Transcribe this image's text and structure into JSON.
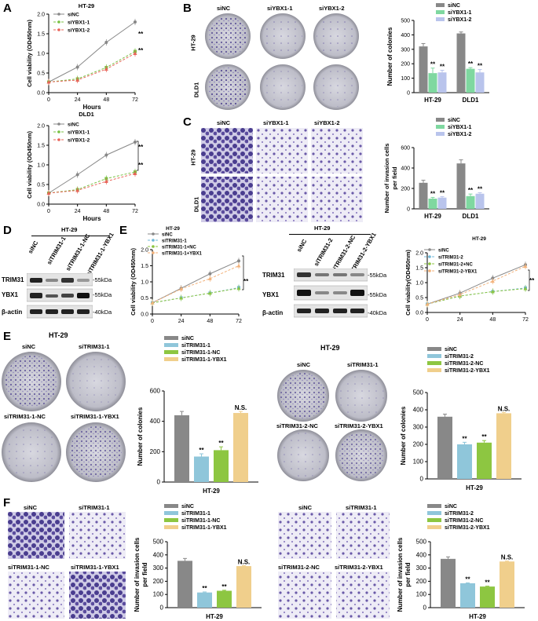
{
  "panel_labels": [
    "A",
    "B",
    "C",
    "D",
    "E",
    "E",
    "F"
  ],
  "colors": {
    "siNC": "#888888",
    "siYBX1_1": "#7fd8a0",
    "siYBX1_2": "#b9c4ec",
    "siTRIM_1": "#8fc6da",
    "siTRIM_NC": "#8dc641",
    "siTRIM_YBX1": "#f0cf8c",
    "line_siNC": "#888888",
    "line_siY1": "#7ac143",
    "line_siY2": "#e8645a",
    "line_siT": "#6fb8d8",
    "line_siTNC": "#8dc641",
    "line_siTY": "#f3b27a",
    "purple": "#6a5aa8"
  },
  "images": {
    "B_cols": [
      "siNC",
      "siYBX1-1",
      "siYBX1-2"
    ],
    "B_rows": [
      "HT-29",
      "DLD1"
    ],
    "C_cols": [
      "siNC",
      "siYBX1-1",
      "siYBX1-2"
    ],
    "C_rows": [
      "HT-29",
      "DLD1"
    ],
    "D_header": "HT-29",
    "D_lanes": [
      "siNC",
      "siTRIM31-1",
      "siTRIM31-1-NC",
      "siTRIM31-1-YBX1"
    ],
    "D_proteins": [
      "TRIM31",
      "YBX1",
      "β-actin"
    ],
    "D_sizes": [
      "-55kDa",
      "-55kDa",
      "-40kDa"
    ],
    "D2_header": "HT-29",
    "D2_lanes": [
      "siNC",
      "siTRIM31-2",
      "siTRIM31-2-NC",
      "siTRIM31-2-YBX1"
    ],
    "D2_proteins": [
      "TRIM31",
      "YBX1",
      "β-actin"
    ],
    "D2_sizes": [
      "-55kDa",
      "-55kDa",
      "-40kDa"
    ],
    "E1_title": "HT-29",
    "E1_plates": [
      "siNC",
      "siTRIM31-1",
      "siTRIM31-1-NC",
      "siTRIM31-1-YBX1"
    ],
    "E2_title": "HT-29",
    "E2_plates": [
      "siNC",
      "siTRIM31-1",
      "siTRIM31-2-NC",
      "siTRIM31-2-YBX1"
    ],
    "F1_fields": [
      "siNC",
      "siTRIM31-1",
      "siTRIM31-1-NC",
      "siTRIM31-1-YBX1"
    ],
    "F2_fields": [
      "siNC",
      "siTRIM31-1",
      "siTRIM31-2-NC",
      "siTRIM31-2-YBX1"
    ]
  },
  "chart_data": [
    {
      "id": "A1",
      "type": "line",
      "title": "HT-29",
      "x": [
        0,
        24,
        48,
        72
      ],
      "xlabel": "Hours",
      "ylabel": "Cell viability (OD450nm)",
      "ylim": [
        0,
        2.0
      ],
      "yticks": [
        0,
        0.5,
        1.0,
        1.5,
        2.0
      ],
      "xticks": [
        0,
        24,
        48,
        72
      ],
      "series": [
        {
          "name": "siNC",
          "values": [
            0.27,
            0.65,
            1.28,
            1.8
          ]
        },
        {
          "name": "siYBX1-1",
          "values": [
            0.27,
            0.35,
            0.64,
            1.05
          ]
        },
        {
          "name": "siYBX1-2",
          "values": [
            0.27,
            0.32,
            0.6,
            1.0
          ]
        }
      ],
      "annotations": [
        "**",
        "**"
      ]
    },
    {
      "id": "A2",
      "type": "line",
      "title": "DLD1",
      "x": [
        0,
        24,
        48,
        72
      ],
      "xlabel": "Hours",
      "ylabel": "Cell viability (OD450nm)",
      "ylim": [
        0,
        2.0
      ],
      "yticks": [
        0,
        0.5,
        1.0,
        1.5,
        2.0
      ],
      "xticks": [
        0,
        24,
        48,
        72
      ],
      "series": [
        {
          "name": "siNC",
          "values": [
            0.28,
            0.75,
            1.25,
            1.58
          ]
        },
        {
          "name": "siYBX1-1",
          "values": [
            0.28,
            0.37,
            0.65,
            0.82
          ]
        },
        {
          "name": "siYBX1-2",
          "values": [
            0.28,
            0.35,
            0.58,
            0.78
          ]
        }
      ],
      "annotations": [
        "**",
        "**"
      ]
    },
    {
      "id": "B",
      "type": "bar",
      "categories": [
        "HT-29",
        "DLD1"
      ],
      "ylabel": "Number of colonies",
      "ylim": [
        0,
        500
      ],
      "yticks": [
        0,
        100,
        200,
        300,
        400,
        500
      ],
      "series": [
        {
          "name": "siNC",
          "values": [
            320,
            410
          ],
          "err": [
            20,
            10
          ]
        },
        {
          "name": "siYBX1-1",
          "values": [
            135,
            165
          ],
          "err": [
            35,
            8
          ]
        },
        {
          "name": "siYBX1-2",
          "values": [
            140,
            140
          ],
          "err": [
            15,
            20
          ]
        }
      ],
      "annotations": [
        "**",
        "**",
        "**",
        "**"
      ]
    },
    {
      "id": "C",
      "type": "bar",
      "categories": [
        "HT-29",
        "DLD1"
      ],
      "ylabel": "Number of invasion cells per field",
      "ylim": [
        0,
        600
      ],
      "yticks": [
        0,
        200,
        400,
        600
      ],
      "series": [
        {
          "name": "siNC",
          "values": [
            255,
            445
          ],
          "err": [
            25,
            35
          ]
        },
        {
          "name": "siYBX1-1",
          "values": [
            100,
            125
          ],
          "err": [
            12,
            20
          ]
        },
        {
          "name": "siYBX1-2",
          "values": [
            110,
            148
          ],
          "err": [
            10,
            10
          ]
        }
      ],
      "annotations": [
        "**",
        "**",
        "**",
        "**"
      ]
    },
    {
      "id": "E_line1",
      "type": "line",
      "title": "HT-29",
      "x": [
        0,
        24,
        48,
        72
      ],
      "xlabel": "",
      "ylabel": "Cell viability (OD450nm)",
      "ylim": [
        0,
        2.0
      ],
      "yticks": [
        0,
        0.5,
        1.0,
        1.5,
        2.0
      ],
      "xticks": [
        0,
        24,
        48,
        72
      ],
      "series": [
        {
          "name": "siNC",
          "values": [
            0.35,
            0.8,
            1.25,
            1.65
          ]
        },
        {
          "name": "siTRIM31-1",
          "values": [
            0.35,
            0.5,
            0.65,
            0.82
          ]
        },
        {
          "name": "siTRIM31-1+NC",
          "values": [
            0.35,
            0.5,
            0.65,
            0.8
          ]
        },
        {
          "name": "siTRIM31-1+YBX1",
          "values": [
            0.35,
            0.78,
            1.1,
            1.5
          ]
        }
      ],
      "annotations": [
        "**"
      ]
    },
    {
      "id": "E_line2",
      "type": "line",
      "title": "HT-29",
      "x": [
        0,
        24,
        48,
        72
      ],
      "xlabel": "",
      "ylabel": "Cell viability(OD450nm)",
      "ylim": [
        0,
        2.0
      ],
      "yticks": [
        0,
        0.5,
        1.0,
        1.5,
        2.0
      ],
      "xticks": [
        0,
        24,
        48,
        72
      ],
      "series": [
        {
          "name": "siNC",
          "values": [
            0.28,
            0.65,
            1.15,
            1.6
          ]
        },
        {
          "name": "siTRIM31-2",
          "values": [
            0.28,
            0.55,
            0.7,
            0.82
          ]
        },
        {
          "name": "siTRIM31-2+NC",
          "values": [
            0.28,
            0.55,
            0.7,
            0.8
          ]
        },
        {
          "name": "siTRIM31-2-YBX1",
          "values": [
            0.28,
            0.6,
            1.05,
            1.55
          ]
        }
      ],
      "annotations": [
        "**"
      ]
    },
    {
      "id": "E_bar1",
      "type": "bar",
      "categories": [
        "HT-29"
      ],
      "ylabel": "Number of colonies",
      "ylim": [
        0,
        600
      ],
      "yticks": [
        0,
        200,
        400,
        600
      ],
      "series": [
        {
          "name": "siNC",
          "values": [
            440
          ],
          "err": [
            25
          ]
        },
        {
          "name": "siTRIM31-1",
          "values": [
            168
          ],
          "err": [
            18
          ]
        },
        {
          "name": "siTRIM31-1-NC",
          "values": [
            210
          ],
          "err": [
            22
          ]
        },
        {
          "name": "siTRIM31-1-YBX1",
          "values": [
            455
          ],
          "err": [
            10
          ]
        }
      ],
      "annotations": [
        "**",
        "**",
        "N.S."
      ]
    },
    {
      "id": "E_bar2",
      "type": "bar",
      "categories": [
        "HT-29"
      ],
      "ylabel": "Number of colonies",
      "ylim": [
        0,
        500
      ],
      "yticks": [
        0,
        100,
        200,
        300,
        400,
        500
      ],
      "series": [
        {
          "name": "siNC",
          "values": [
            360
          ],
          "err": [
            15
          ]
        },
        {
          "name": "siTRIM31-2",
          "values": [
            200
          ],
          "err": [
            12
          ]
        },
        {
          "name": "siTRIM31-2-NC",
          "values": [
            210
          ],
          "err": [
            12
          ]
        },
        {
          "name": "siTRIM31-2-YBX1",
          "values": [
            380
          ],
          "err": [
            5
          ]
        }
      ],
      "annotations": [
        "**",
        "**",
        "N.S."
      ]
    },
    {
      "id": "F_bar1",
      "type": "bar",
      "categories": [
        "HT-29"
      ],
      "ylabel": "Number of invasion cells per field",
      "ylim": [
        0,
        500
      ],
      "yticks": [
        0,
        100,
        200,
        300,
        400,
        500
      ],
      "series": [
        {
          "name": "siNC",
          "values": [
            355
          ],
          "err": [
            18
          ]
        },
        {
          "name": "siTRIM31-1",
          "values": [
            115
          ],
          "err": [
            4
          ]
        },
        {
          "name": "siTRIM31-1-NC",
          "values": [
            128
          ],
          "err": [
            4
          ]
        },
        {
          "name": "siTRIM31-1-YBX1",
          "values": [
            315
          ],
          "err": [
            3
          ]
        }
      ],
      "annotations": [
        "**",
        "**",
        "N.S."
      ]
    },
    {
      "id": "F_bar2",
      "type": "bar",
      "categories": [
        "HT-29"
      ],
      "ylabel": "Number of invasion cells per field",
      "ylim": [
        0,
        500
      ],
      "yticks": [
        0,
        100,
        200,
        300,
        400,
        500
      ],
      "series": [
        {
          "name": "siNC",
          "values": [
            370
          ],
          "err": [
            15
          ]
        },
        {
          "name": "siTRIM31-2",
          "values": [
            185
          ],
          "err": [
            3
          ]
        },
        {
          "name": "siTRIM31-2-NC",
          "values": [
            160
          ],
          "err": [
            3
          ]
        },
        {
          "name": "siTRIM31-2-YBX1",
          "values": [
            350
          ],
          "err": [
            3
          ]
        }
      ],
      "annotations": [
        "**",
        "**",
        "N.S."
      ]
    }
  ]
}
